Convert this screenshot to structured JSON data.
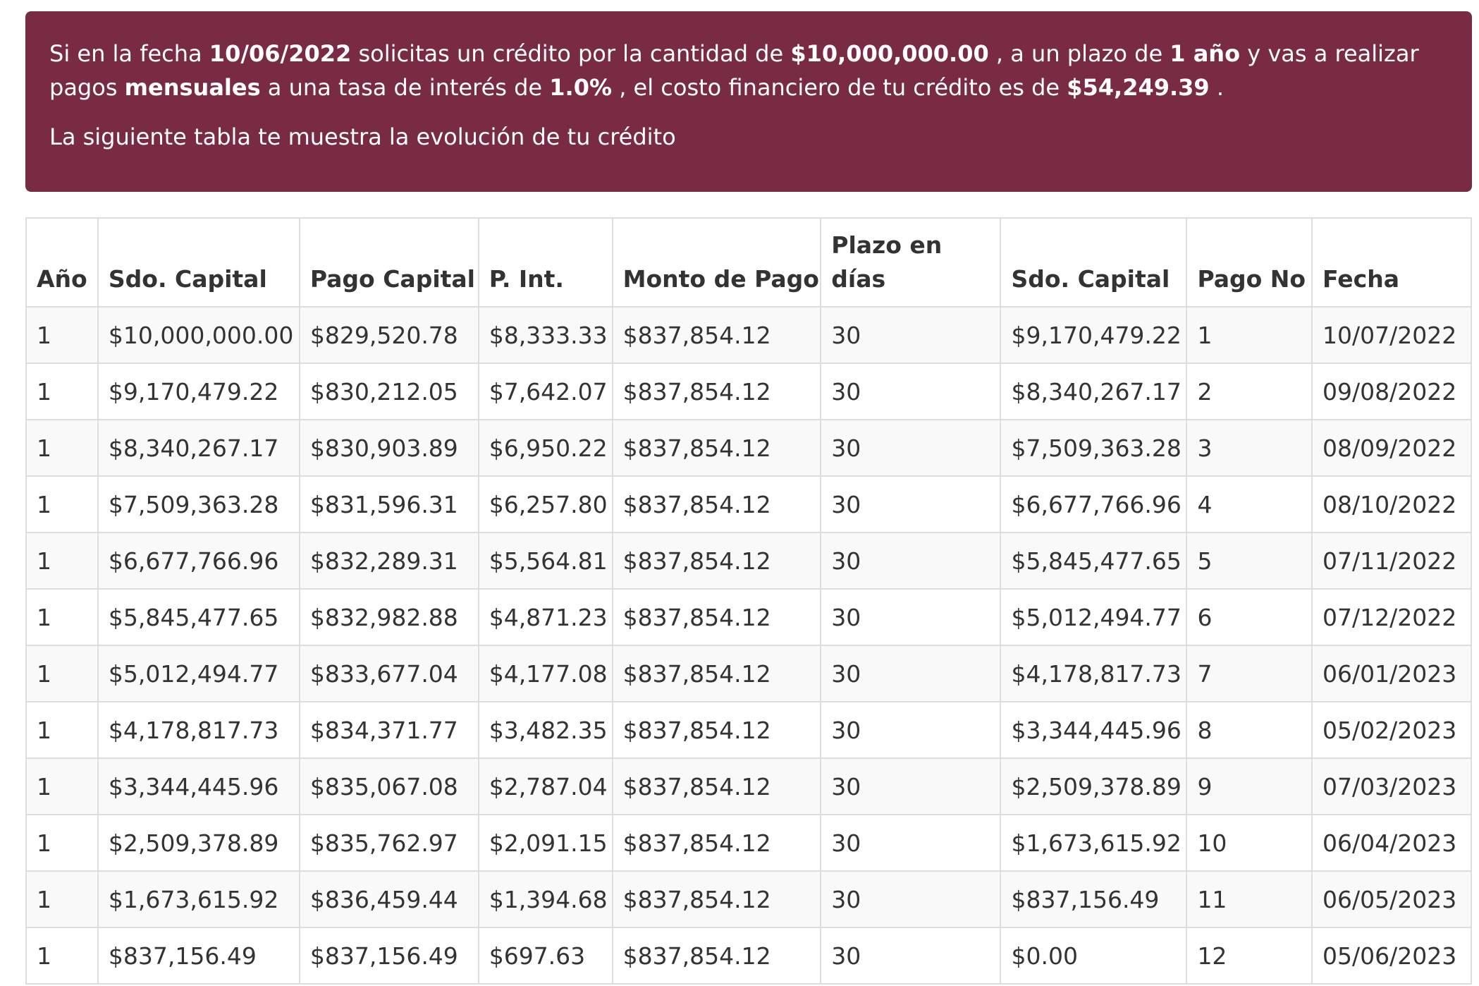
{
  "banner": {
    "s1": "Si en la fecha ",
    "date": "10/06/2022",
    "s2": " solicitas un crédito por la cantidad de ",
    "amount": "$10,000,000.00",
    "s3": " , a un plazo de ",
    "term": "1 año",
    "s4": " y vas a realizar pagos ",
    "frequency": "mensuales",
    "s5": " a una tasa de interés de ",
    "rate": "1.0%",
    "s6": " , el costo financiero de tu crédito es de ",
    "cost": "$54,249.39",
    "s7": " .",
    "subtitle": "La siguiente tabla te muestra la evolución de tu crédito"
  },
  "table": {
    "headers": [
      "Año",
      "Sdo. Capital",
      "Pago Capital",
      "P. Int.",
      "Monto de Pago",
      "Plazo en días",
      "Sdo. Capital",
      "Pago No",
      "Fecha"
    ],
    "rows": [
      [
        "1",
        "$10,000,000.00",
        "$829,520.78",
        "$8,333.33",
        "$837,854.12",
        "30",
        "$9,170,479.22",
        "1",
        "10/07/2022"
      ],
      [
        "1",
        "$9,170,479.22",
        "$830,212.05",
        "$7,642.07",
        "$837,854.12",
        "30",
        "$8,340,267.17",
        "2",
        "09/08/2022"
      ],
      [
        "1",
        "$8,340,267.17",
        "$830,903.89",
        "$6,950.22",
        "$837,854.12",
        "30",
        "$7,509,363.28",
        "3",
        "08/09/2022"
      ],
      [
        "1",
        "$7,509,363.28",
        "$831,596.31",
        "$6,257.80",
        "$837,854.12",
        "30",
        "$6,677,766.96",
        "4",
        "08/10/2022"
      ],
      [
        "1",
        "$6,677,766.96",
        "$832,289.31",
        "$5,564.81",
        "$837,854.12",
        "30",
        "$5,845,477.65",
        "5",
        "07/11/2022"
      ],
      [
        "1",
        "$5,845,477.65",
        "$832,982.88",
        "$4,871.23",
        "$837,854.12",
        "30",
        "$5,012,494.77",
        "6",
        "07/12/2022"
      ],
      [
        "1",
        "$5,012,494.77",
        "$833,677.04",
        "$4,177.08",
        "$837,854.12",
        "30",
        "$4,178,817.73",
        "7",
        "06/01/2023"
      ],
      [
        "1",
        "$4,178,817.73",
        "$834,371.77",
        "$3,482.35",
        "$837,854.12",
        "30",
        "$3,344,445.96",
        "8",
        "05/02/2023"
      ],
      [
        "1",
        "$3,344,445.96",
        "$835,067.08",
        "$2,787.04",
        "$837,854.12",
        "30",
        "$2,509,378.89",
        "9",
        "07/03/2023"
      ],
      [
        "1",
        "$2,509,378.89",
        "$835,762.97",
        "$2,091.15",
        "$837,854.12",
        "30",
        "$1,673,615.92",
        "10",
        "06/04/2023"
      ],
      [
        "1",
        "$1,673,615.92",
        "$836,459.44",
        "$1,394.68",
        "$837,854.12",
        "30",
        "$837,156.49",
        "11",
        "06/05/2023"
      ],
      [
        "1",
        "$837,156.49",
        "$837,156.49",
        "$697.63",
        "$837,854.12",
        "30",
        "$0.00",
        "12",
        "05/06/2023"
      ]
    ]
  },
  "colors": {
    "banner_bg": "#7a2b44",
    "banner_text": "#ffffff",
    "table_text": "#333333",
    "table_border": "#dddddd",
    "row_stripe": "#f9f9f9"
  }
}
